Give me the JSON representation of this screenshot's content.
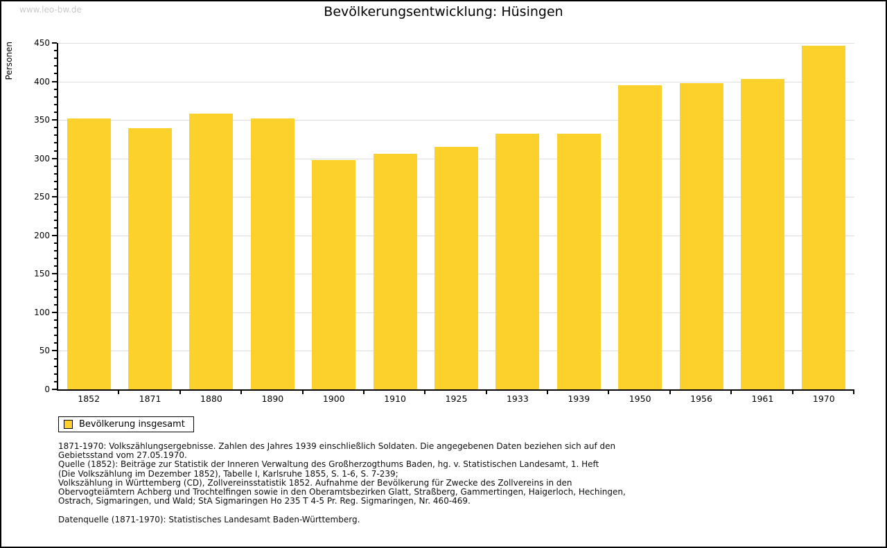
{
  "watermark": "www.leo-bw.de",
  "chart_data": {
    "type": "bar",
    "title": "Bevölkerungsentwicklung: Hüsingen",
    "xlabel": "",
    "ylabel": "Personen",
    "categories": [
      "1852",
      "1871",
      "1880",
      "1890",
      "1900",
      "1910",
      "1925",
      "1933",
      "1939",
      "1950",
      "1956",
      "1961",
      "1970"
    ],
    "series": [
      {
        "name": "Bevölkerung insgesamt",
        "color": "#FCD12B",
        "values": [
          352,
          339,
          358,
          352,
          298,
          306,
          315,
          332,
          332,
          395,
          398,
          403,
          446
        ]
      }
    ],
    "ylim": [
      0,
      450
    ],
    "ytick_step": 50,
    "ytick_minor_step": 10,
    "grid": "horizontal",
    "gridline_color": "#dcdcdc",
    "legend_position": "bottom-left"
  },
  "legend": {
    "label": "Bevölkerung insgesamt",
    "swatch_color": "#FCD12B"
  },
  "footnote_lines": [
    "1871-1970: Volkszählungsergebnisse. Zahlen des Jahres 1939 einschließlich Soldaten. Die angegebenen Daten beziehen sich auf den",
    "Gebietsstand vom 27.05.1970.",
    "Quelle (1852): Beiträge zur Statistik der Inneren Verwaltung des Großherzogthums Baden, hg. v. Statistischen Landesamt, 1. Heft",
    "(Die Volkszählung im Dezember 1852), Tabelle I, Karlsruhe 1855, S. 1-6, S. 7-239;",
    "Volkszählung in Württemberg (CD), Zollvereinsstatistik 1852. Aufnahme der Bevölkerung für Zwecke des Zollvereins in den",
    "Obervogteiämtern Achberg und Trochtelfingen sowie in den Oberamtsbezirken Glatt, Straßberg, Gammertingen, Haigerloch, Hechingen,",
    "Ostrach, Sigmaringen, und Wald; StA Sigmaringen Ho 235 T 4-5 Pr. Reg. Sigmaringen, Nr. 460-469.",
    "",
    "Datenquelle (1871-1970): Statistisches Landesamt Baden-Württemberg."
  ]
}
